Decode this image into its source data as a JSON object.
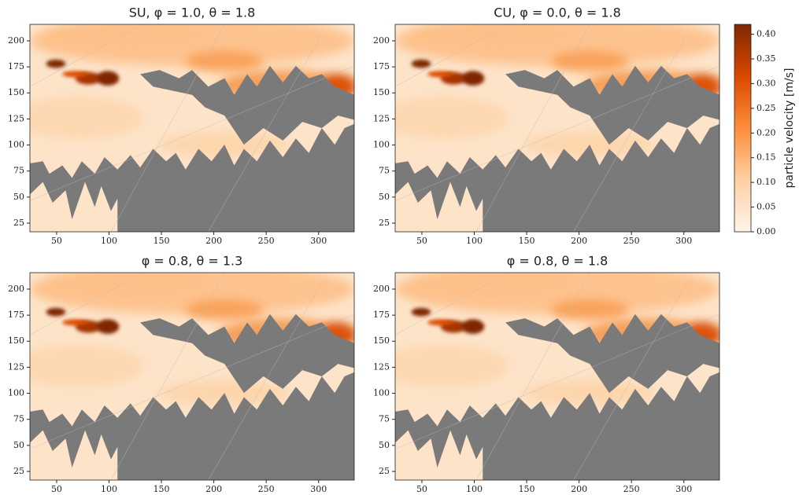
{
  "chart_data": [
    {
      "type": "heatmap",
      "title": "SU, φ = 1.0, θ = 1.8",
      "xlim": [
        24.5,
        334
      ],
      "ylim": [
        16.7,
        215.8
      ],
      "xticks": [
        50,
        100,
        150,
        200,
        250,
        300
      ],
      "yticks": [
        25,
        50,
        75,
        100,
        125,
        150,
        175,
        200
      ]
    },
    {
      "type": "heatmap",
      "title": "CU, φ = 0.0, θ = 1.8",
      "xlim": [
        24.5,
        334
      ],
      "ylim": [
        16.7,
        215.8
      ],
      "xticks": [
        50,
        100,
        150,
        200,
        250,
        300
      ],
      "yticks": [
        25,
        50,
        75,
        100,
        125,
        150,
        175,
        200
      ]
    },
    {
      "type": "heatmap",
      "title": "φ = 0.8, θ = 1.3",
      "xlim": [
        24.5,
        334
      ],
      "ylim": [
        16.7,
        215.8
      ],
      "xticks": [
        50,
        100,
        150,
        200,
        250,
        300
      ],
      "yticks": [
        25,
        50,
        75,
        100,
        125,
        150,
        175,
        200
      ]
    },
    {
      "type": "heatmap",
      "title": "φ = 0.8, θ = 1.8",
      "xlim": [
        24.5,
        334
      ],
      "ylim": [
        16.7,
        215.8
      ],
      "xticks": [
        50,
        100,
        150,
        200,
        250,
        300
      ],
      "yticks": [
        25,
        50,
        75,
        100,
        125,
        150,
        175,
        200
      ]
    }
  ],
  "colorbar": {
    "label": "particle velocity [m/s]",
    "lim": [
      0,
      0.42
    ],
    "ticks": [
      {
        "value": 0,
        "label": "0.00"
      },
      {
        "value": 0.05,
        "label": "0.05"
      },
      {
        "value": 0.1,
        "label": "0.10"
      },
      {
        "value": 0.15,
        "label": "0.15"
      },
      {
        "value": 0.2,
        "label": "0.20"
      },
      {
        "value": 0.25,
        "label": "0.25"
      },
      {
        "value": 0.3,
        "label": "0.30"
      },
      {
        "value": 0.35,
        "label": "0.35"
      },
      {
        "value": 0.4,
        "label": "0.40"
      }
    ],
    "colormap": [
      "#fff5eb",
      "#fdd0a2",
      "#fd8d3c",
      "#d94801",
      "#7f2704"
    ]
  }
}
